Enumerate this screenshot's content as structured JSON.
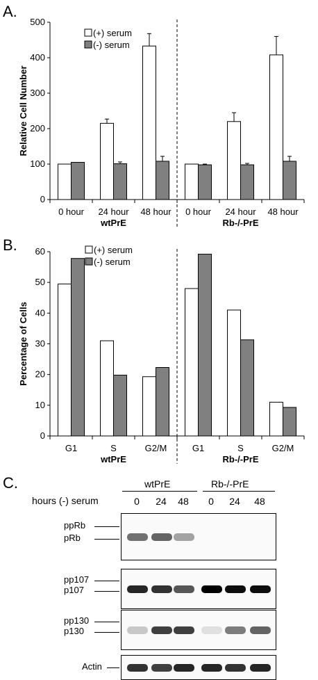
{
  "panels": {
    "a": {
      "letter": "A."
    },
    "b": {
      "letter": "B."
    },
    "c": {
      "letter": "C."
    }
  },
  "chart_data": [
    {
      "type": "bar",
      "ylabel": "Relative Cell Number",
      "ylim": [
        0,
        500
      ],
      "yticks": [
        0,
        100,
        200,
        300,
        400,
        500
      ],
      "categories": [
        "0 hour",
        "24 hour",
        "48 hour",
        "0 hour",
        "24 hour",
        "48 hour"
      ],
      "groups": [
        {
          "label": "wtPrE",
          "categories": [
            "0 hour",
            "24 hour",
            "48 hour"
          ]
        },
        {
          "label": "Rb-/-PrE",
          "categories": [
            "0 hour",
            "24 hour",
            "48 hour"
          ]
        }
      ],
      "legend": "top-left",
      "grid": false,
      "series": [
        {
          "name": "(+) serum",
          "color": "#ffffff",
          "values": [
            100,
            215,
            433,
            100,
            220,
            408
          ],
          "errors": [
            0,
            12,
            35,
            0,
            25,
            52
          ]
        },
        {
          "name": "(-) serum",
          "color": "#808080",
          "values": [
            105,
            101,
            108,
            98,
            98,
            108
          ],
          "errors": [
            0,
            5,
            14,
            2,
            4,
            14
          ]
        }
      ]
    },
    {
      "type": "bar",
      "ylabel": "Percentage of Cells",
      "ylim": [
        0,
        60
      ],
      "yticks": [
        0,
        10,
        20,
        30,
        40,
        50,
        60
      ],
      "categories": [
        "G1",
        "S",
        "G2/M",
        "G1",
        "S",
        "G2/M"
      ],
      "groups": [
        {
          "label": "wtPrE",
          "categories": [
            "G1",
            "S",
            "G2/M"
          ]
        },
        {
          "label": "Rb-/-PrE",
          "categories": [
            "G1",
            "S",
            "G2/M"
          ]
        }
      ],
      "legend": "top-left",
      "grid": false,
      "series": [
        {
          "name": "(+) serum",
          "color": "#ffffff",
          "values": [
            49.5,
            31,
            19.3,
            48,
            41,
            11
          ]
        },
        {
          "name": "(-) serum",
          "color": "#808080",
          "values": [
            57.8,
            19.8,
            22.3,
            59.2,
            31.3,
            9.3
          ]
        }
      ]
    }
  ],
  "blot": {
    "group_labels": [
      "wtPrE",
      "Rb-/-PrE"
    ],
    "row_header": "hours (-) serum",
    "timepoints": [
      "0",
      "24",
      "48",
      "0",
      "24",
      "48"
    ],
    "rows": [
      {
        "labels": [
          "ppRb",
          "pRb"
        ],
        "intensity": [
          0.55,
          0.6,
          0.35,
          0,
          0,
          0
        ]
      },
      {
        "labels": [
          "pp107",
          "p107"
        ],
        "intensity": [
          0.85,
          0.8,
          0.65,
          1.0,
          0.95,
          0.95
        ]
      },
      {
        "labels": [
          "pp130",
          "p130"
        ],
        "intensity": [
          0.2,
          0.75,
          0.75,
          0.1,
          0.5,
          0.6
        ]
      },
      {
        "labels": [
          "Actin"
        ],
        "intensity": [
          0.8,
          0.75,
          0.85,
          0.85,
          0.8,
          0.85
        ]
      }
    ]
  }
}
